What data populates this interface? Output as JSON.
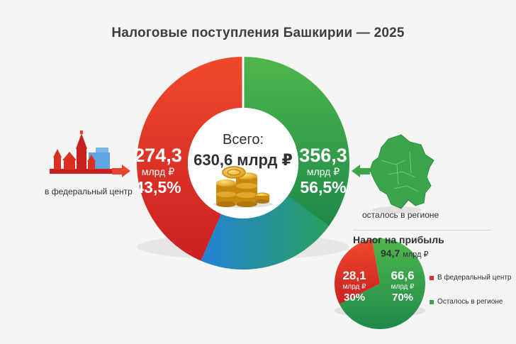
{
  "title": "Налоговые поступления Башкирии — 2025",
  "center": {
    "label": "Всего:",
    "total": "630,6 млрд ₽"
  },
  "left_label": {
    "value": "274,3",
    "unit": "млрд ₽",
    "percent": "43,5%"
  },
  "right_label": {
    "value": "356,3",
    "unit": "млрд ₽",
    "percent": "56,5%"
  },
  "left_caption": "в федеральный центр",
  "right_caption": "осталось в регионе",
  "small_chart": {
    "title": "Налог на прибыль",
    "total_value": "94,7",
    "total_unit": "млрд ₽",
    "left": {
      "value": "28,1",
      "unit": "млрд ₽",
      "percent": "30%"
    },
    "right": {
      "value": "66,6",
      "unit": "млрд ₽",
      "percent": "70%"
    },
    "legend": [
      "В федеральный центр",
      "Осталось в регионе"
    ]
  },
  "colors": {
    "federal": "#e2302a",
    "region": "#3aa54a",
    "accent_blue": "#2a8fd8",
    "arrow": "#e8452c"
  },
  "chart_data": [
    {
      "type": "pie",
      "title": "Налоговые поступления Башкирии — 2025",
      "categories": [
        "в федеральный центр",
        "осталось в регионе"
      ],
      "values": [
        274.3,
        356.3
      ],
      "percent": [
        43.5,
        56.5
      ],
      "total": 630.6
    },
    {
      "type": "pie",
      "title": "Налог на прибыль",
      "categories": [
        "В федеральный центр",
        "Осталось в регионе"
      ],
      "values": [
        28.1,
        66.6
      ],
      "percent": [
        30,
        70
      ],
      "total": 94.7
    }
  ]
}
